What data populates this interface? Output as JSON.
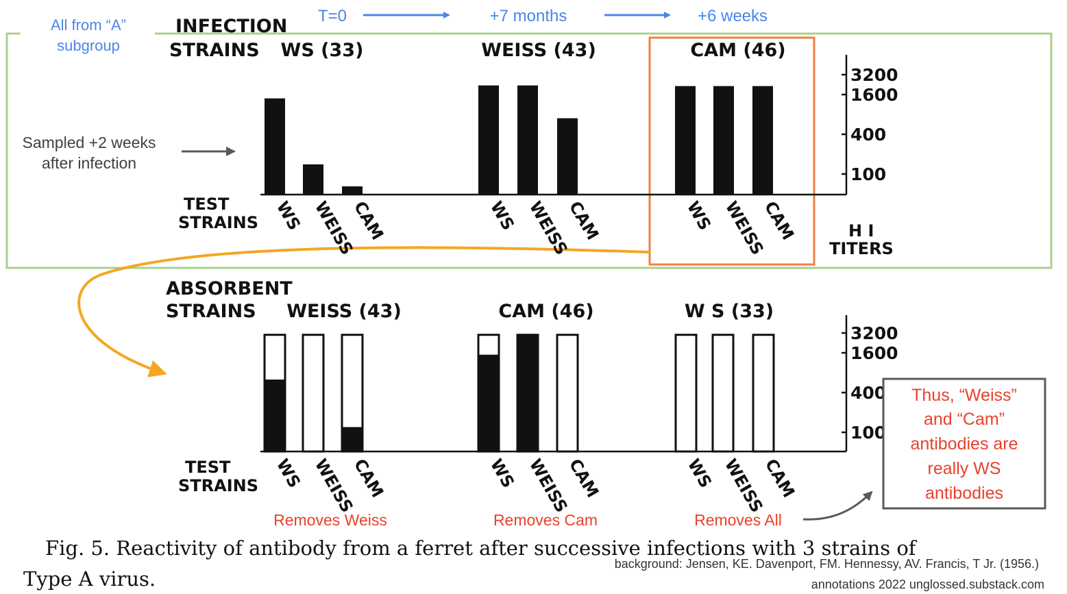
{
  "annotations": {
    "subgroup_line1": "All from “A”",
    "subgroup_line2": "subgroup",
    "timeline": [
      "T=0",
      "+7 months",
      "+6 weeks"
    ],
    "sampled_line1": "Sampled +2 weeks",
    "sampled_line2": "after infection",
    "removes": [
      "Removes Weiss",
      "Removes Cam",
      "Removes All"
    ],
    "conclusion": [
      "Thus, “Weiss”",
      "and “Cam”",
      "antibodies are",
      "really WS",
      "antibodies"
    ],
    "source_line1": "background: Jensen, KE. Davenport, FM. Hennessy, AV. Francis, T Jr. (1956.)",
    "source_line2": "annotations 2022 unglossed.substack.com",
    "colors": {
      "blue": "#4a86e8",
      "green": "#a9d18e",
      "orange": "#f08040",
      "red": "#e8412c",
      "gray": "#595959",
      "arrow_orange": "#f5a623"
    }
  },
  "figure": {
    "caption_line1": "Fig. 5. Reactivity of antibody from a ferret after successive infections with 3 strains of",
    "caption_line2": "Type A virus.",
    "infection_header_line1": "INFECTION",
    "infection_header_line2": "STRAINS",
    "absorbent_header_line1": "ABSORBENT",
    "absorbent_header_line2": "STRAINS",
    "test_label_line1": "TEST",
    "test_label_line2": "STRAINS",
    "axis_title_line1": "H I",
    "axis_title_line2": "TITERS"
  },
  "chart_data": [
    {
      "type": "bar",
      "title": "INFECTION STRAINS",
      "scale": "log",
      "yticks": [
        100,
        400,
        1600,
        3200
      ],
      "ylabel": "H I TITERS",
      "groups": [
        {
          "name": "WS (33)",
          "categories": [
            "WS",
            "WEISS",
            "CAM"
          ],
          "values": [
            1400,
            140,
            65
          ]
        },
        {
          "name": "WEISS (43)",
          "categories": [
            "WS",
            "WEISS",
            "CAM"
          ],
          "values": [
            2200,
            2200,
            700
          ]
        },
        {
          "name": "CAM (46)",
          "categories": [
            "WS",
            "WEISS",
            "CAM"
          ],
          "values": [
            2150,
            2150,
            2150
          ]
        }
      ]
    },
    {
      "type": "bar",
      "title": "ABSORBENT STRAINS",
      "scale": "log",
      "yticks": [
        100,
        400,
        1600,
        3200
      ],
      "ylabel": "H I TITERS",
      "note": "outlined bar height = pre-absorption titer; black fill = titer remaining after absorption",
      "groups": [
        {
          "name": "WEISS (43)",
          "categories": [
            "WS",
            "WEISS",
            "CAM"
          ],
          "total": [
            3000,
            3000,
            3000
          ],
          "remaining": [
            630,
            10,
            120
          ]
        },
        {
          "name": "CAM (46)",
          "categories": [
            "WS",
            "WEISS",
            "CAM"
          ],
          "total": [
            3000,
            3000,
            3000
          ],
          "remaining": [
            1500,
            3000,
            10
          ]
        },
        {
          "name": "W S (33)",
          "categories": [
            "WS",
            "WEISS",
            "CAM"
          ],
          "total": [
            3000,
            3000,
            3000
          ],
          "remaining": [
            10,
            10,
            10
          ]
        }
      ]
    }
  ]
}
